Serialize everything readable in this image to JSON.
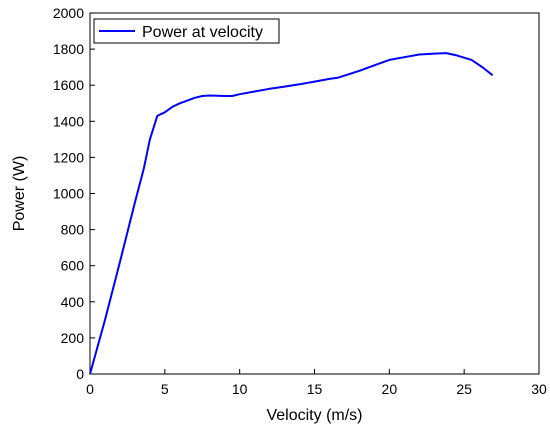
{
  "chart_data": {
    "type": "line",
    "title": "",
    "xlabel": "Velocity (m/s)",
    "ylabel": "Power (W)",
    "xlim": [
      0,
      30
    ],
    "ylim": [
      0,
      2000
    ],
    "xticks": [
      0,
      5,
      10,
      15,
      20,
      25,
      30
    ],
    "yticks": [
      0,
      200,
      400,
      600,
      800,
      1000,
      1200,
      1400,
      1600,
      1800,
      2000
    ],
    "grid": false,
    "legend_position": "top-left",
    "series": [
      {
        "name": "Power at velocity",
        "color": "#0000ff",
        "x": [
          0,
          1,
          2,
          3,
          3.6,
          4,
          4.5,
          5,
          5.5,
          6,
          7,
          7.5,
          8,
          9,
          9.5,
          10,
          11,
          12,
          13,
          14,
          15,
          16,
          16.6,
          18,
          19,
          20,
          21,
          22,
          23,
          23.8,
          24.5,
          25.5,
          26.3,
          26.9
        ],
        "y": [
          0,
          300,
          620,
          950,
          1140,
          1300,
          1430,
          1450,
          1480,
          1500,
          1530,
          1540,
          1543,
          1540,
          1540,
          1550,
          1565,
          1580,
          1592,
          1605,
          1620,
          1635,
          1642,
          1680,
          1710,
          1740,
          1755,
          1770,
          1775,
          1778,
          1765,
          1740,
          1695,
          1655
        ]
      }
    ]
  }
}
